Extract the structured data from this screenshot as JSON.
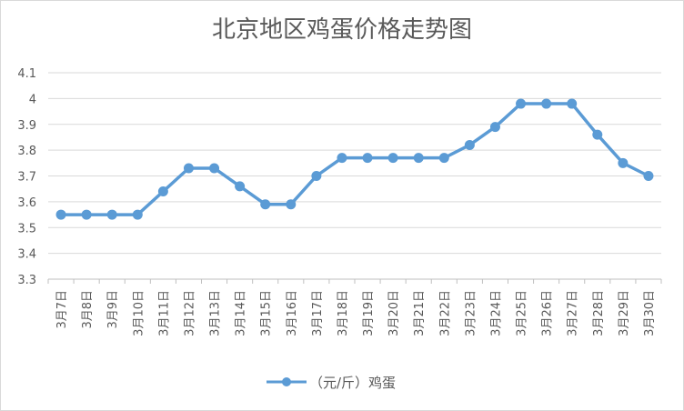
{
  "chart_data": {
    "type": "line",
    "title": "北京地区鸡蛋价格走势图",
    "categories": [
      "3月7日",
      "3月8日",
      "3月9日",
      "3月10日",
      "3月11日",
      "3月12日",
      "3月13日",
      "3月14日",
      "3月15日",
      "3月16日",
      "3月17日",
      "3月18日",
      "3月19日",
      "3月20日",
      "3月21日",
      "3月22日",
      "3月23日",
      "3月24日",
      "3月25日",
      "3月26日",
      "3月27日",
      "3月28日",
      "3月29日",
      "3月30日"
    ],
    "series": [
      {
        "name": "（元/斤）鸡蛋",
        "values": [
          3.55,
          3.55,
          3.55,
          3.55,
          3.64,
          3.73,
          3.73,
          3.66,
          3.59,
          3.59,
          3.7,
          3.77,
          3.77,
          3.77,
          3.77,
          3.77,
          3.82,
          3.89,
          3.98,
          3.98,
          3.98,
          3.86,
          3.75,
          3.7
        ],
        "color": "#5b9bd5"
      }
    ],
    "ylim": [
      3.3,
      4.1
    ],
    "yticks": [
      "3.3",
      "3.4",
      "3.5",
      "3.6",
      "3.7",
      "3.8",
      "3.9",
      "4",
      "4.1"
    ],
    "grid": true,
    "legend": "bottom"
  }
}
